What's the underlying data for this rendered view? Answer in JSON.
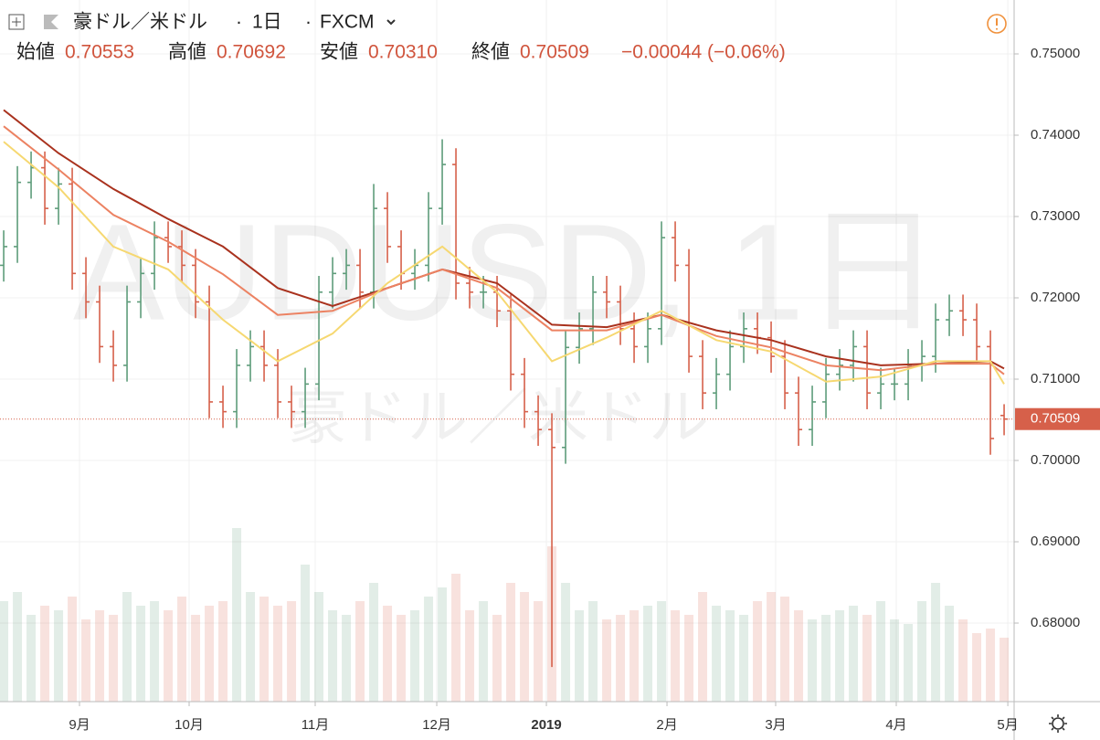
{
  "header": {
    "symbol": "豪ドル／米ドル",
    "interval": "1日",
    "source": "FXCM",
    "ohlc": [
      {
        "label": "始値",
        "value": "0.70553"
      },
      {
        "label": "高値",
        "value": "0.70692"
      },
      {
        "label": "安値",
        "value": "0.70310"
      },
      {
        "label": "終値",
        "value": "0.70509"
      }
    ],
    "change": "−0.00044 (−0.06%)"
  },
  "watermark": {
    "line1": "AUDUSD, 1日",
    "line2": "豪ドル／米ドル"
  },
  "chart_data": {
    "type": "ohlc",
    "categories": [
      null,
      null,
      null,
      null,
      null,
      null,
      null,
      null,
      null,
      null,
      null,
      null,
      null,
      null,
      null,
      null,
      null,
      null,
      null,
      null,
      null,
      null,
      null,
      null,
      null,
      null,
      null,
      null,
      null,
      null,
      null,
      null,
      null,
      null,
      null,
      null,
      null,
      null,
      null,
      null,
      null,
      null,
      null,
      null,
      null,
      null,
      null,
      null,
      null,
      null,
      null,
      null,
      null,
      null,
      null,
      null,
      null,
      null,
      null,
      null,
      null,
      null,
      null,
      null,
      null,
      null,
      null,
      null,
      null,
      null,
      null,
      null,
      null,
      null
    ],
    "open": [
      0.724,
      0.7263,
      0.7342,
      0.736,
      0.731,
      0.734,
      0.723,
      0.7195,
      0.714,
      0.7117,
      0.7195,
      0.723,
      0.7274,
      0.7263,
      0.724,
      0.7195,
      0.7072,
      0.706,
      0.7117,
      0.714,
      0.7117,
      0.7072,
      0.706,
      0.7094,
      0.7207,
      0.723,
      0.724,
      0.7207,
      0.731,
      0.7263,
      0.723,
      0.724,
      0.731,
      0.7364,
      0.7218,
      0.7207,
      0.7207,
      0.7184,
      0.7106,
      0.706,
      0.7038,
      0.7016,
      0.7139,
      0.7162,
      0.7207,
      0.7195,
      0.7162,
      0.714,
      0.7162,
      0.7274,
      0.724,
      0.7128,
      0.7083,
      0.7106,
      0.714,
      0.7162,
      0.7151,
      0.7128,
      0.7083,
      0.7038,
      0.7072,
      0.7106,
      0.7117,
      0.714,
      0.7083,
      0.7094,
      0.7094,
      0.7117,
      0.7128,
      0.7173,
      0.7184,
      0.7173,
      0.714,
      0.70553
    ],
    "high": [
      0.7283,
      0.7362,
      0.738,
      0.738,
      0.736,
      0.736,
      0.725,
      0.7215,
      0.716,
      0.7215,
      0.725,
      0.7294,
      0.7294,
      0.7283,
      0.726,
      0.7215,
      0.7092,
      0.7137,
      0.716,
      0.716,
      0.7137,
      0.7092,
      0.7114,
      0.7227,
      0.725,
      0.726,
      0.726,
      0.734,
      0.733,
      0.7283,
      0.726,
      0.733,
      0.7395,
      0.7384,
      0.7238,
      0.7227,
      0.7227,
      0.7204,
      0.7126,
      0.708,
      0.7058,
      0.7159,
      0.7182,
      0.7227,
      0.7227,
      0.7215,
      0.7182,
      0.7182,
      0.7294,
      0.7294,
      0.726,
      0.7148,
      0.7126,
      0.716,
      0.7182,
      0.7182,
      0.7171,
      0.7148,
      0.7103,
      0.7092,
      0.7126,
      0.7137,
      0.716,
      0.716,
      0.7114,
      0.7114,
      0.7137,
      0.7148,
      0.7193,
      0.7204,
      0.7204,
      0.7193,
      0.716,
      0.70692
    ],
    "low": [
      0.722,
      0.7243,
      0.7322,
      0.729,
      0.729,
      0.721,
      0.7175,
      0.712,
      0.7097,
      0.7097,
      0.7175,
      0.721,
      0.7243,
      0.722,
      0.7175,
      0.7052,
      0.704,
      0.704,
      0.7097,
      0.7097,
      0.7052,
      0.704,
      0.704,
      0.7074,
      0.7187,
      0.721,
      0.7187,
      0.7187,
      0.7243,
      0.721,
      0.721,
      0.722,
      0.729,
      0.7198,
      0.7187,
      0.7187,
      0.7164,
      0.7086,
      0.704,
      0.7018,
      0.6746,
      0.6996,
      0.7119,
      0.7142,
      0.7175,
      0.7142,
      0.712,
      0.712,
      0.7142,
      0.722,
      0.7108,
      0.7063,
      0.7063,
      0.7086,
      0.712,
      0.7131,
      0.7108,
      0.7063,
      0.7018,
      0.7018,
      0.7052,
      0.7086,
      0.7097,
      0.7063,
      0.7063,
      0.7074,
      0.7074,
      0.7097,
      0.7108,
      0.7153,
      0.7153,
      0.712,
      0.7007,
      0.7031
    ],
    "close": [
      0.7263,
      0.7342,
      0.736,
      0.731,
      0.734,
      0.723,
      0.7195,
      0.714,
      0.7117,
      0.7195,
      0.723,
      0.7274,
      0.7263,
      0.724,
      0.7195,
      0.7072,
      0.706,
      0.7117,
      0.714,
      0.7117,
      0.7072,
      0.706,
      0.7094,
      0.7207,
      0.723,
      0.724,
      0.7207,
      0.731,
      0.7263,
      0.723,
      0.724,
      0.731,
      0.7364,
      0.7218,
      0.7207,
      0.7207,
      0.7184,
      0.7106,
      0.706,
      0.7038,
      0.7016,
      0.7139,
      0.7162,
      0.7207,
      0.7195,
      0.7162,
      0.714,
      0.7162,
      0.7274,
      0.724,
      0.7128,
      0.7083,
      0.7106,
      0.714,
      0.7162,
      0.7151,
      0.7128,
      0.7083,
      0.7038,
      0.7072,
      0.7106,
      0.7117,
      0.714,
      0.7083,
      0.7094,
      0.7094,
      0.7117,
      0.7128,
      0.7173,
      0.7184,
      0.7173,
      0.714,
      0.7027,
      0.70509
    ],
    "volume": [
      110,
      120,
      95,
      105,
      100,
      115,
      90,
      100,
      95,
      120,
      105,
      110,
      100,
      115,
      95,
      105,
      110,
      190,
      120,
      115,
      105,
      110,
      150,
      120,
      100,
      95,
      110,
      130,
      105,
      95,
      100,
      115,
      125,
      140,
      100,
      110,
      95,
      130,
      120,
      110,
      170,
      130,
      100,
      110,
      90,
      95,
      100,
      105,
      110,
      100,
      95,
      120,
      105,
      100,
      95,
      110,
      120,
      115,
      100,
      90,
      95,
      100,
      105,
      95,
      110,
      90,
      85,
      110,
      130,
      105,
      90,
      75,
      80,
      70
    ],
    "volume_lim": [
      0,
      200
    ],
    "up_color": "#5e9c7a",
    "down_color": "#d6604a",
    "series": [
      {
        "color": "#a9321e",
        "x": [
          0,
          4,
          8,
          12,
          16,
          20,
          24,
          28,
          32,
          36,
          40,
          44,
          48,
          52,
          56,
          60,
          64,
          68,
          72,
          73
        ],
        "values": [
          0.7431,
          0.7378,
          0.7334,
          0.7297,
          0.7263,
          0.7212,
          0.719,
          0.7212,
          0.7235,
          0.7218,
          0.7167,
          0.7164,
          0.7179,
          0.716,
          0.7148,
          0.7128,
          0.7117,
          0.7119,
          0.7122,
          0.7113
        ]
      },
      {
        "color": "#ec8262",
        "x": [
          0,
          4,
          8,
          12,
          16,
          20,
          24,
          28,
          32,
          36,
          40,
          44,
          48,
          52,
          56,
          60,
          64,
          68,
          72,
          73
        ],
        "values": [
          0.7411,
          0.7358,
          0.7302,
          0.7269,
          0.7229,
          0.7179,
          0.7184,
          0.7212,
          0.7235,
          0.7212,
          0.716,
          0.716,
          0.7179,
          0.7153,
          0.7139,
          0.7117,
          0.7111,
          0.7119,
          0.7119,
          0.7106
        ]
      },
      {
        "color": "#f6d871",
        "x": [
          0,
          4,
          8,
          12,
          16,
          20,
          24,
          28,
          32,
          36,
          40,
          44,
          48,
          52,
          56,
          60,
          64,
          68,
          72,
          73
        ],
        "values": [
          0.7392,
          0.7336,
          0.7263,
          0.7235,
          0.7173,
          0.7122,
          0.7156,
          0.7218,
          0.7263,
          0.7207,
          0.7122,
          0.7151,
          0.7184,
          0.7148,
          0.7134,
          0.7097,
          0.7103,
          0.7122,
          0.7122,
          0.7094
        ]
      }
    ],
    "last_price": {
      "value": 0.70509,
      "label": "0.70509"
    },
    "xlim": [
      -0.27,
      73.73
    ],
    "xticks": [
      {
        "value": 5.53,
        "label": "9月"
      },
      {
        "value": 13.53,
        "label": "10月"
      },
      {
        "value": 22.73,
        "label": "11月"
      },
      {
        "value": 31.6,
        "label": "12月"
      },
      {
        "value": 39.6,
        "label": "2019"
      },
      {
        "value": 48.4,
        "label": "2月"
      },
      {
        "value": 56.33,
        "label": "3月"
      },
      {
        "value": 65.13,
        "label": "4月"
      },
      {
        "value": 73.27,
        "label": "5月"
      }
    ],
    "ylim": [
      0.67034,
      0.75663
    ],
    "yticks": [
      {
        "value": 0.75,
        "label": "0.75000"
      },
      {
        "value": 0.74,
        "label": "0.74000"
      },
      {
        "value": 0.73,
        "label": "0.73000"
      },
      {
        "value": 0.72,
        "label": "0.72000"
      },
      {
        "value": 0.71,
        "label": "0.71000"
      },
      {
        "value": 0.7,
        "label": "0.70000"
      },
      {
        "value": 0.69,
        "label": "0.69000"
      },
      {
        "value": 0.68,
        "label": "0.68000"
      }
    ],
    "grid": true
  }
}
